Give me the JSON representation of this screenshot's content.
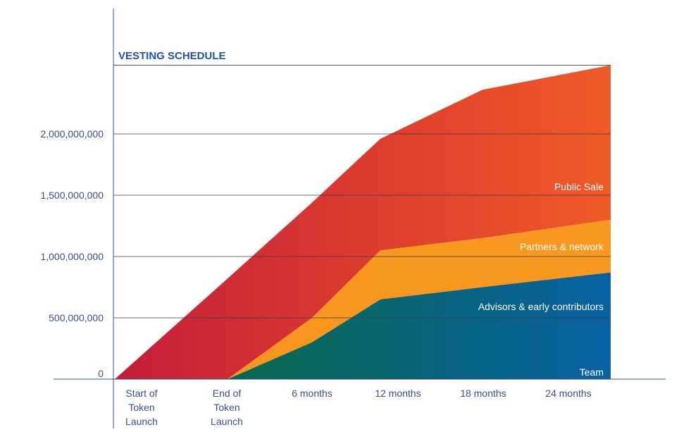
{
  "chart_data": {
    "type": "area",
    "title": "VESTING SCHEDULE",
    "stacked": true,
    "x": [
      "Start of Token Launch",
      "End of Token Launch",
      "6 months",
      "12 months",
      "18 months",
      "24 months"
    ],
    "x_tick_lines": [
      [
        "Start of",
        "Token",
        "Launch"
      ],
      [
        "End of",
        "Token",
        "Launch"
      ],
      [
        "6 months"
      ],
      [
        "12 months"
      ],
      [
        "18 months"
      ],
      [
        "24 months"
      ]
    ],
    "y_ticks": [
      {
        "value": 0,
        "label": "0"
      },
      {
        "value": 500000000,
        "label": "500,000,000"
      },
      {
        "value": 1000000000,
        "label": "1,000,000,000"
      },
      {
        "value": 1500000000,
        "label": "1,500,000,000"
      },
      {
        "value": 2000000000,
        "label": "2,000,000,000"
      }
    ],
    "ylim": [
      0,
      2560000000
    ],
    "grid": true,
    "series": [
      {
        "name": "Team",
        "color_start": "#0b6b3a",
        "color_end": "#0a5f9c",
        "values": [
          0,
          0,
          300000000,
          650000000,
          750000000,
          870000000
        ]
      },
      {
        "name": "Advisors & early contributors",
        "color_start": "#f7941d",
        "color_end": "#f7941d",
        "values": [
          0,
          0,
          200000000,
          400000000,
          400000000,
          430000000
        ]
      },
      {
        "name": "Partners & network",
        "color_start": "#d92b2b",
        "color_end": "#ee5a27",
        "values": [
          0,
          0,
          0,
          0,
          0,
          0
        ]
      },
      {
        "name": "Public Sale",
        "color_start": "#c81f36",
        "color_end": "#f05a28",
        "values": [
          0,
          820000000,
          940000000,
          910000000,
          1210000000,
          1260000000
        ]
      }
    ],
    "series_labels": [
      "Public Sale",
      "Partners & network",
      "Advisors & early contributors",
      "Team"
    ]
  }
}
